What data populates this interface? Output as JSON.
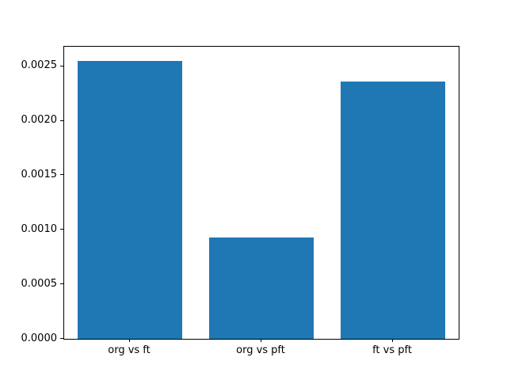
{
  "chart_data": {
    "type": "bar",
    "categories": [
      "org vs ft",
      "org vs pft",
      "ft vs pft"
    ],
    "values": [
      0.00255,
      0.00093,
      0.00236
    ],
    "title": "",
    "xlabel": "",
    "ylabel": "",
    "ylim": [
      0,
      0.00268
    ],
    "yticks": [
      0.0,
      0.0005,
      0.001,
      0.0015,
      0.002,
      0.0025
    ],
    "ytick_labels": [
      "0.0000",
      "0.0005",
      "0.0010",
      "0.0015",
      "0.0020",
      "0.0025"
    ],
    "bar_color": "#1f77b4",
    "axis_color": "#000000",
    "background_color": "#ffffff",
    "grid": false,
    "legend": false,
    "bar_width_fraction": 0.8
  }
}
